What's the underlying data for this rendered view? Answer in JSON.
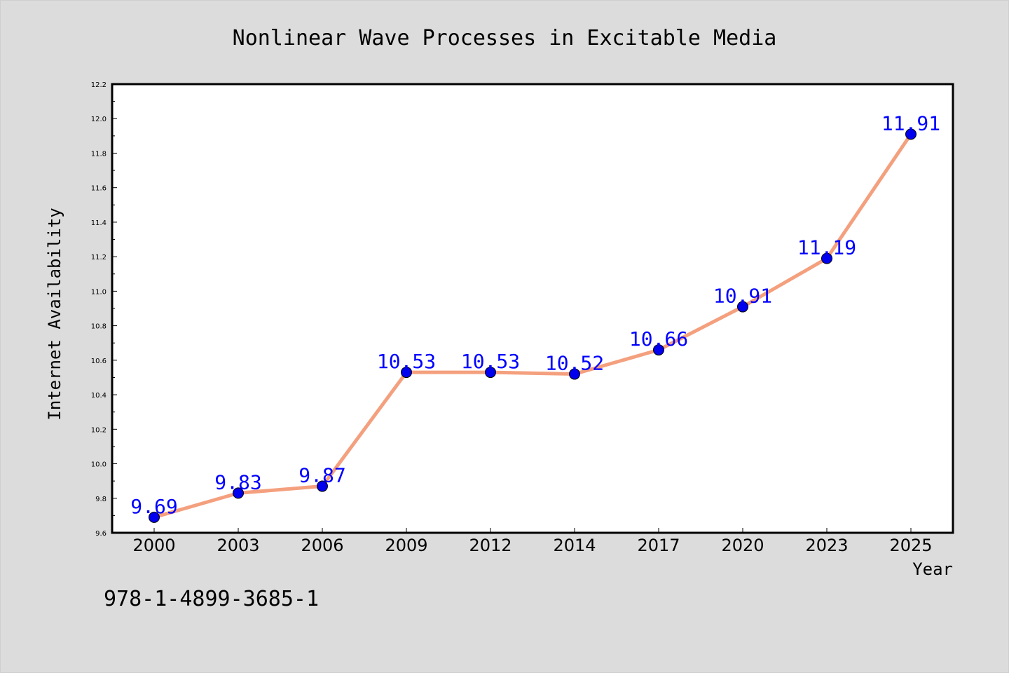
{
  "chart_data": {
    "type": "line",
    "title": "Nonlinear Wave Processes in Excitable Media",
    "xlabel": "Year",
    "ylabel": "Internet Availability",
    "categories": [
      "2000",
      "2003",
      "2006",
      "2009",
      "2012",
      "2014",
      "2017",
      "2020",
      "2023",
      "2025"
    ],
    "values": [
      9.69,
      9.83,
      9.87,
      10.53,
      10.53,
      10.52,
      10.66,
      10.91,
      11.19,
      11.91
    ],
    "data_labels": [
      "9.69",
      "9.83",
      "9.87",
      "10.53",
      "10.53",
      "10.52",
      "10.66",
      "10.91",
      "11.19",
      "11.91"
    ],
    "ylim": [
      9.6,
      12.2
    ],
    "yticks": [
      "9.6",
      "9.8",
      "10.0",
      "10.2",
      "10.4",
      "10.6",
      "10.8",
      "11.0",
      "11.2",
      "11.4",
      "11.6",
      "11.8",
      "12.0",
      "12.2"
    ],
    "grid": false,
    "line_color": "#f4a07e",
    "marker_color": "#0000ee",
    "label_color": "#0000ff"
  },
  "annotation": "978-1-4899-3685-1"
}
